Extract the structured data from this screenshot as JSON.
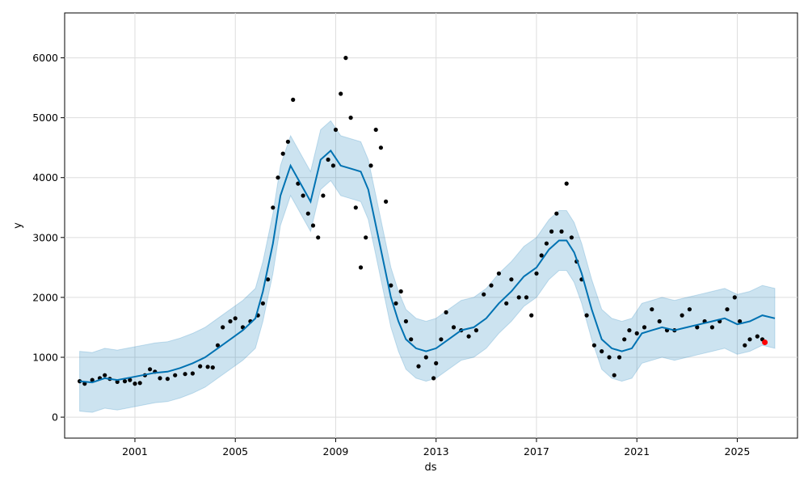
{
  "chart_data": {
    "type": "line",
    "title": "",
    "xlabel": "ds",
    "ylabel": "y",
    "xlim": [
      1998.2,
      2027.4
    ],
    "ylim": [
      -350,
      6750
    ],
    "x_ticks": [
      "2001",
      "2005",
      "2009",
      "2013",
      "2017",
      "2021",
      "2025"
    ],
    "x_tick_values": [
      2001,
      2005,
      2009,
      2013,
      2017,
      2021,
      2025
    ],
    "y_ticks": [
      "0",
      "1000",
      "2000",
      "3000",
      "4000",
      "5000",
      "6000"
    ],
    "y_tick_values": [
      0,
      1000,
      2000,
      3000,
      4000,
      5000,
      6000
    ],
    "grid": true,
    "colors": {
      "observed": "#000000",
      "forecast": "#0072B2",
      "uncertainty": "#0072B2",
      "latest": "#ff0000"
    },
    "series": [
      {
        "role": "observed",
        "style": "scatter",
        "x": [
          1998.8,
          1999.0,
          1999.3,
          1999.6,
          1999.8,
          2000.0,
          2000.3,
          2000.6,
          2000.8,
          2001.0,
          2001.2,
          2001.4,
          2001.6,
          2001.8,
          2002.0,
          2002.3,
          2002.6,
          2003.0,
          2003.3,
          2003.6,
          2003.9,
          2004.1,
          2004.3,
          2004.5,
          2004.8,
          2005.0,
          2005.3,
          2005.6,
          2005.9,
          2006.1,
          2006.3,
          2006.5,
          2006.7,
          2006.9,
          2007.1,
          2007.3,
          2007.5,
          2007.7,
          2007.9,
          2008.1,
          2008.3,
          2008.5,
          2008.7,
          2008.9,
          2009.0,
          2009.2,
          2009.4,
          2009.6,
          2009.8,
          2010.0,
          2010.2,
          2010.4,
          2010.6,
          2010.8,
          2011.0,
          2011.2,
          2011.4,
          2011.6,
          2011.8,
          2012.0,
          2012.3,
          2012.6,
          2012.9,
          2013.0,
          2013.2,
          2013.4,
          2013.7,
          2014.0,
          2014.3,
          2014.6,
          2014.9,
          2015.2,
          2015.5,
          2015.8,
          2016.0,
          2016.3,
          2016.6,
          2016.8,
          2017.0,
          2017.2,
          2017.4,
          2017.6,
          2017.8,
          2018.0,
          2018.2,
          2018.4,
          2018.6,
          2018.8,
          2019.0,
          2019.3,
          2019.6,
          2019.9,
          2020.1,
          2020.3,
          2020.5,
          2020.7,
          2021.0,
          2021.3,
          2021.6,
          2021.9,
          2022.2,
          2022.5,
          2022.8,
          2023.1,
          2023.4,
          2023.7,
          2024.0,
          2024.3,
          2024.6,
          2024.9,
          2025.1,
          2025.3,
          2025.5,
          2025.8,
          2026.0
        ],
        "y": [
          600,
          560,
          620,
          650,
          700,
          640,
          590,
          600,
          620,
          560,
          570,
          700,
          800,
          760,
          650,
          640,
          700,
          720,
          730,
          850,
          840,
          830,
          1200,
          1500,
          1600,
          1650,
          1500,
          1600,
          1700,
          1900,
          2300,
          3500,
          4000,
          4400,
          4600,
          5300,
          3900,
          3700,
          3400,
          3200,
          3000,
          3700,
          4300,
          4200,
          4800,
          5400,
          6000,
          5000,
          3500,
          2500,
          3000,
          4200,
          4800,
          4500,
          3600,
          2200,
          1900,
          2100,
          1600,
          1300,
          850,
          1000,
          650,
          900,
          1300,
          1750,
          1500,
          1450,
          1350,
          1450,
          2050,
          2200,
          2400,
          1900,
          2300,
          2000,
          2000,
          1700,
          2400,
          2700,
          2900,
          3100,
          3400,
          3100,
          3900,
          3000,
          2600,
          2300,
          1700,
          1200,
          1100,
          1000,
          700,
          1000,
          1300,
          1450,
          1400,
          1500,
          1800,
          1600,
          1450,
          1450,
          1700,
          1800,
          1500,
          1600,
          1500,
          1600,
          1800,
          2000,
          1600,
          1200,
          1300,
          1350,
          1300
        ]
      },
      {
        "role": "forecast",
        "style": "line",
        "x": [
          1998.8,
          1999.3,
          1999.8,
          2000.3,
          2000.8,
          2001.3,
          2001.8,
          2002.3,
          2002.8,
          2003.3,
          2003.8,
          2004.3,
          2004.8,
          2005.3,
          2005.8,
          2006.1,
          2006.5,
          2006.8,
          2007.2,
          2007.6,
          2008.0,
          2008.4,
          2008.8,
          2009.2,
          2009.6,
          2010.0,
          2010.3,
          2010.6,
          2010.9,
          2011.2,
          2011.5,
          2011.8,
          2012.2,
          2012.6,
          2013.0,
          2013.5,
          2014.0,
          2014.5,
          2015.0,
          2015.5,
          2016.0,
          2016.5,
          2017.0,
          2017.5,
          2017.9,
          2018.2,
          2018.5,
          2018.8,
          2019.2,
          2019.6,
          2020.0,
          2020.4,
          2020.8,
          2021.2,
          2021.6,
          2022.0,
          2022.5,
          2023.0,
          2023.5,
          2024.0,
          2024.5,
          2025.0,
          2025.5,
          2026.0,
          2026.5
        ],
        "y": [
          600,
          580,
          650,
          620,
          660,
          700,
          740,
          760,
          820,
          900,
          1000,
          1150,
          1300,
          1450,
          1650,
          2100,
          2900,
          3700,
          4200,
          3900,
          3600,
          4300,
          4450,
          4200,
          4150,
          4100,
          3800,
          3200,
          2600,
          2000,
          1600,
          1300,
          1150,
          1100,
          1150,
          1300,
          1450,
          1500,
          1650,
          1900,
          2100,
          2350,
          2500,
          2800,
          2950,
          2950,
          2750,
          2400,
          1800,
          1300,
          1150,
          1100,
          1150,
          1400,
          1450,
          1500,
          1450,
          1500,
          1550,
          1600,
          1650,
          1550,
          1600,
          1700,
          1650
        ]
      },
      {
        "role": "uncertainty",
        "style": "band",
        "x": [
          1998.8,
          1999.3,
          1999.8,
          2000.3,
          2000.8,
          2001.3,
          2001.8,
          2002.3,
          2002.8,
          2003.3,
          2003.8,
          2004.3,
          2004.8,
          2005.3,
          2005.8,
          2006.1,
          2006.5,
          2006.8,
          2007.2,
          2007.6,
          2008.0,
          2008.4,
          2008.8,
          2009.2,
          2009.6,
          2010.0,
          2010.3,
          2010.6,
          2010.9,
          2011.2,
          2011.5,
          2011.8,
          2012.2,
          2012.6,
          2013.0,
          2013.5,
          2014.0,
          2014.5,
          2015.0,
          2015.5,
          2016.0,
          2016.5,
          2017.0,
          2017.5,
          2017.9,
          2018.2,
          2018.5,
          2018.8,
          2019.2,
          2019.6,
          2020.0,
          2020.4,
          2020.8,
          2021.2,
          2021.6,
          2022.0,
          2022.5,
          2023.0,
          2023.5,
          2024.0,
          2024.5,
          2025.0,
          2025.5,
          2026.0,
          2026.5
        ],
        "upper": [
          1100,
          1080,
          1150,
          1120,
          1160,
          1200,
          1240,
          1260,
          1320,
          1400,
          1500,
          1650,
          1800,
          1950,
          2150,
          2600,
          3400,
          4200,
          4700,
          4400,
          4100,
          4800,
          4950,
          4700,
          4650,
          4600,
          4300,
          3700,
          3100,
          2500,
          2100,
          1800,
          1650,
          1600,
          1650,
          1800,
          1950,
          2000,
          2150,
          2400,
          2600,
          2850,
          3000,
          3300,
          3450,
          3450,
          3250,
          2900,
          2300,
          1800,
          1650,
          1600,
          1650,
          1900,
          1950,
          2000,
          1950,
          2000,
          2050,
          2100,
          2150,
          2050,
          2100,
          2200,
          2150
        ],
        "lower": [
          100,
          80,
          150,
          120,
          160,
          200,
          240,
          260,
          320,
          400,
          500,
          650,
          800,
          950,
          1150,
          1600,
          2400,
          3200,
          3700,
          3400,
          3100,
          3800,
          3950,
          3700,
          3650,
          3600,
          3300,
          2700,
          2100,
          1500,
          1100,
          800,
          650,
          600,
          650,
          800,
          950,
          1000,
          1150,
          1400,
          1600,
          1850,
          2000,
          2300,
          2450,
          2450,
          2250,
          1900,
          1300,
          800,
          650,
          600,
          650,
          900,
          950,
          1000,
          950,
          1000,
          1050,
          1100,
          1150,
          1050,
          1100,
          1200,
          1150
        ]
      },
      {
        "role": "latest",
        "style": "scatter",
        "x": [
          2026.1
        ],
        "y": [
          1250
        ]
      }
    ]
  }
}
